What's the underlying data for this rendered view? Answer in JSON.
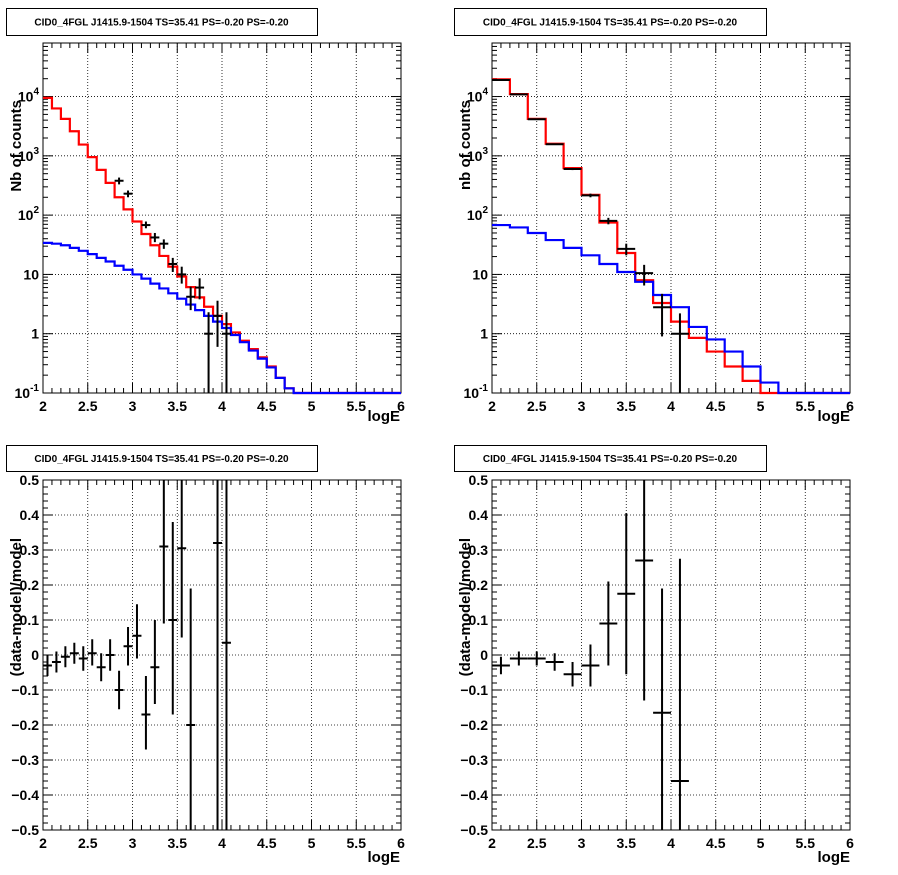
{
  "chart_data": [
    {
      "type": "histogram",
      "title": "CID0_4FGL J1415.9-1504 TS=35.41 PS=-0.20 PS=-0.20",
      "xlabel": "logE",
      "ylabel": "Nb of counts",
      "log_y": true,
      "xlim": [
        2,
        6
      ],
      "ylim": [
        0.1,
        80000
      ],
      "grid": true,
      "x_ticks": [
        "2",
        "2.5",
        "3",
        "3.5",
        "4",
        "4.5",
        "5",
        "5.5",
        "6"
      ],
      "y_ticks": [
        "10^-1",
        "1",
        "10",
        "10^2",
        "10^3",
        "10^4"
      ],
      "bin_edges": [
        2.0,
        2.1,
        2.2,
        2.3,
        2.4,
        2.5,
        2.6,
        2.7,
        2.8,
        2.9,
        3.0,
        3.1,
        3.2,
        3.3,
        3.4,
        3.5,
        3.6,
        3.7,
        3.8,
        3.9,
        4.0,
        4.1,
        4.2,
        4.3,
        4.4,
        4.5,
        4.6,
        4.7,
        4.8,
        4.9,
        5.0,
        5.1,
        5.2,
        5.3,
        5.4,
        5.5,
        5.6,
        5.7,
        5.8,
        5.9,
        6.0
      ],
      "series": [
        {
          "style": "step",
          "color": "#ff0000",
          "values": [
            9500,
            6300,
            4200,
            2600,
            1550,
            950,
            580,
            350,
            200,
            125,
            78,
            48,
            31,
            20.5,
            13.5,
            9.2,
            6.1,
            4.1,
            2.85,
            2.0,
            1.45,
            1.05,
            0.76,
            0.55,
            0.4,
            0.28,
            0.18,
            0.12,
            0.1,
            0.1,
            0.1,
            0.1,
            0.1,
            0.1,
            0.1,
            0.1,
            0.1,
            0.1,
            0.1,
            0.1
          ]
        },
        {
          "style": "step",
          "color": "#0000ff",
          "values": [
            34,
            33,
            31,
            28,
            25,
            22,
            19,
            16.5,
            14,
            12,
            10,
            8.5,
            7,
            5.8,
            4.8,
            3.9,
            3.1,
            2.5,
            2.0,
            1.6,
            1.25,
            0.95,
            0.72,
            0.52,
            0.38,
            0.27,
            0.18,
            0.12,
            0.1,
            0.1,
            0.1,
            0.1,
            0.1,
            0.1,
            0.1,
            0.1,
            0.1,
            0.1,
            0.1,
            0.1
          ]
        },
        {
          "style": "points",
          "color": "#000000",
          "x": [
            2.85,
            2.95,
            3.15,
            3.25,
            3.35,
            3.45,
            3.55,
            3.65,
            3.75,
            3.85,
            3.95,
            4.05
          ],
          "y": [
            380,
            230,
            68,
            42,
            33,
            15,
            10,
            4.2,
            6.0,
            1.0,
            2.0,
            1.0
          ],
          "y_low": [
            330,
            200,
            60,
            35,
            27,
            11,
            7,
            2.5,
            3.8,
            0.1,
            0.6,
            0.1
          ],
          "y_high": [
            430,
            260,
            78,
            50,
            39,
            19,
            13.5,
            6.2,
            8.6,
            2.3,
            3.6,
            2.3
          ]
        }
      ]
    },
    {
      "type": "histogram",
      "title": "CID0_4FGL J1415.9-1504 TS=35.41 PS=-0.20 PS=-0.20",
      "xlabel": "logE",
      "ylabel": "nb of counts",
      "log_y": true,
      "xlim": [
        2,
        6
      ],
      "ylim": [
        0.1,
        80000
      ],
      "grid": true,
      "x_ticks": [
        "2",
        "2.5",
        "3",
        "3.5",
        "4",
        "4.5",
        "5",
        "5.5",
        "6"
      ],
      "y_ticks": [
        "10^-1",
        "1",
        "10",
        "10^2",
        "10^3",
        "10^4"
      ],
      "bin_edges": [
        2.0,
        2.2,
        2.4,
        2.6,
        2.8,
        3.0,
        3.2,
        3.4,
        3.6,
        3.8,
        4.0,
        4.2,
        4.4,
        4.6,
        4.8,
        5.0,
        5.2,
        5.4,
        5.6,
        5.8,
        6.0
      ],
      "series": [
        {
          "style": "step",
          "color": "#ff0000",
          "values": [
            19500,
            11000,
            4200,
            1600,
            620,
            220,
            75,
            23,
            8,
            3.3,
            1.6,
            0.85,
            0.5,
            0.28,
            0.16,
            0.1,
            0.1,
            0.1,
            0.1,
            0.1
          ]
        },
        {
          "style": "step",
          "color": "#0000ff",
          "values": [
            68,
            62,
            50,
            38,
            28,
            21,
            15,
            11,
            7.5,
            4.5,
            2.8,
            1.3,
            0.8,
            0.5,
            0.28,
            0.15,
            0.1,
            0.1,
            0.1,
            0.1
          ]
        },
        {
          "style": "points",
          "color": "#000000",
          "x": [
            2.1,
            2.3,
            2.5,
            2.7,
            2.9,
            3.1,
            3.3,
            3.5,
            3.7,
            3.9,
            4.1
          ],
          "y": [
            19000,
            10900,
            4150,
            1570,
            600,
            215,
            80,
            27,
            10.5,
            2.8,
            1.0
          ],
          "y_low": [
            18800,
            10800,
            4080,
            1530,
            575,
            200,
            70,
            21,
            6.5,
            0.9,
            0.1
          ],
          "y_high": [
            19200,
            11000,
            4220,
            1610,
            625,
            230,
            90,
            33,
            14.5,
            4.7,
            2.2
          ]
        }
      ]
    },
    {
      "type": "histogram",
      "title": "CID0_4FGL J1415.9-1504 TS=35.41 PS=-0.20 PS=-0.20",
      "xlabel": "logE",
      "ylabel": "(data-model)/model",
      "log_y": false,
      "xlim": [
        2,
        6
      ],
      "ylim": [
        -0.5,
        0.5
      ],
      "grid": true,
      "x_ticks": [
        "2",
        "2.5",
        "3",
        "3.5",
        "4",
        "4.5",
        "5",
        "5.5",
        "6"
      ],
      "y_ticks": [
        "-0.5",
        "-0.4",
        "-0.3",
        "-0.2",
        "-0.1",
        "0",
        "0.1",
        "0.2",
        "0.3",
        "0.4",
        "0.5"
      ],
      "series": [
        {
          "style": "points",
          "color": "#000000",
          "x_half_width": 0.05,
          "x": [
            2.05,
            2.15,
            2.25,
            2.35,
            2.45,
            2.55,
            2.65,
            2.75,
            2.85,
            2.95,
            3.05,
            3.15,
            3.25,
            3.35,
            3.45,
            3.55,
            3.65,
            3.95,
            4.05
          ],
          "y": [
            -0.03,
            -0.02,
            -0.005,
            0.005,
            -0.01,
            0.005,
            -0.035,
            0.0,
            -0.1,
            0.025,
            0.055,
            -0.17,
            -0.035,
            0.31,
            0.1,
            0.305,
            -0.2,
            0.32,
            0.035
          ],
          "y_low": [
            -0.06,
            -0.05,
            -0.035,
            -0.025,
            -0.045,
            -0.03,
            -0.075,
            -0.045,
            -0.155,
            -0.03,
            -0.01,
            -0.27,
            -0.14,
            0.09,
            -0.17,
            0.05,
            -0.5,
            -0.5,
            -0.5
          ],
          "y_high": [
            0.0,
            0.01,
            0.025,
            0.035,
            0.025,
            0.045,
            0.005,
            0.045,
            -0.045,
            0.08,
            0.145,
            -0.06,
            0.1,
            0.5,
            0.38,
            0.5,
            0.19,
            0.5,
            0.5
          ]
        }
      ]
    },
    {
      "type": "histogram",
      "title": "CID0_4FGL J1415.9-1504 TS=35.41 PS=-0.20 PS=-0.20",
      "xlabel": "logE",
      "ylabel": "(data-model)/model",
      "log_y": false,
      "xlim": [
        2,
        6
      ],
      "ylim": [
        -0.5,
        0.5
      ],
      "grid": true,
      "x_ticks": [
        "2",
        "2.5",
        "3",
        "3.5",
        "4",
        "4.5",
        "5",
        "5.5",
        "6"
      ],
      "y_ticks": [
        "-0.5",
        "-0.4",
        "-0.3",
        "-0.2",
        "-0.1",
        "0",
        "0.1",
        "0.2",
        "0.3",
        "0.4",
        "0.5"
      ],
      "series": [
        {
          "style": "points",
          "color": "#000000",
          "x_half_width": 0.1,
          "x": [
            2.1,
            2.3,
            2.5,
            2.7,
            2.9,
            3.1,
            3.3,
            3.5,
            3.7,
            3.9,
            4.1
          ],
          "y": [
            -0.03,
            -0.01,
            -0.01,
            -0.02,
            -0.055,
            -0.03,
            0.09,
            0.175,
            0.27,
            -0.165,
            -0.36
          ],
          "y_low": [
            -0.055,
            -0.03,
            -0.03,
            -0.045,
            -0.09,
            -0.09,
            -0.03,
            -0.055,
            -0.13,
            -0.5,
            -0.5
          ],
          "y_high": [
            -0.005,
            0.01,
            0.01,
            0.005,
            -0.02,
            0.03,
            0.21,
            0.405,
            0.5,
            0.19,
            0.275
          ]
        }
      ]
    }
  ]
}
